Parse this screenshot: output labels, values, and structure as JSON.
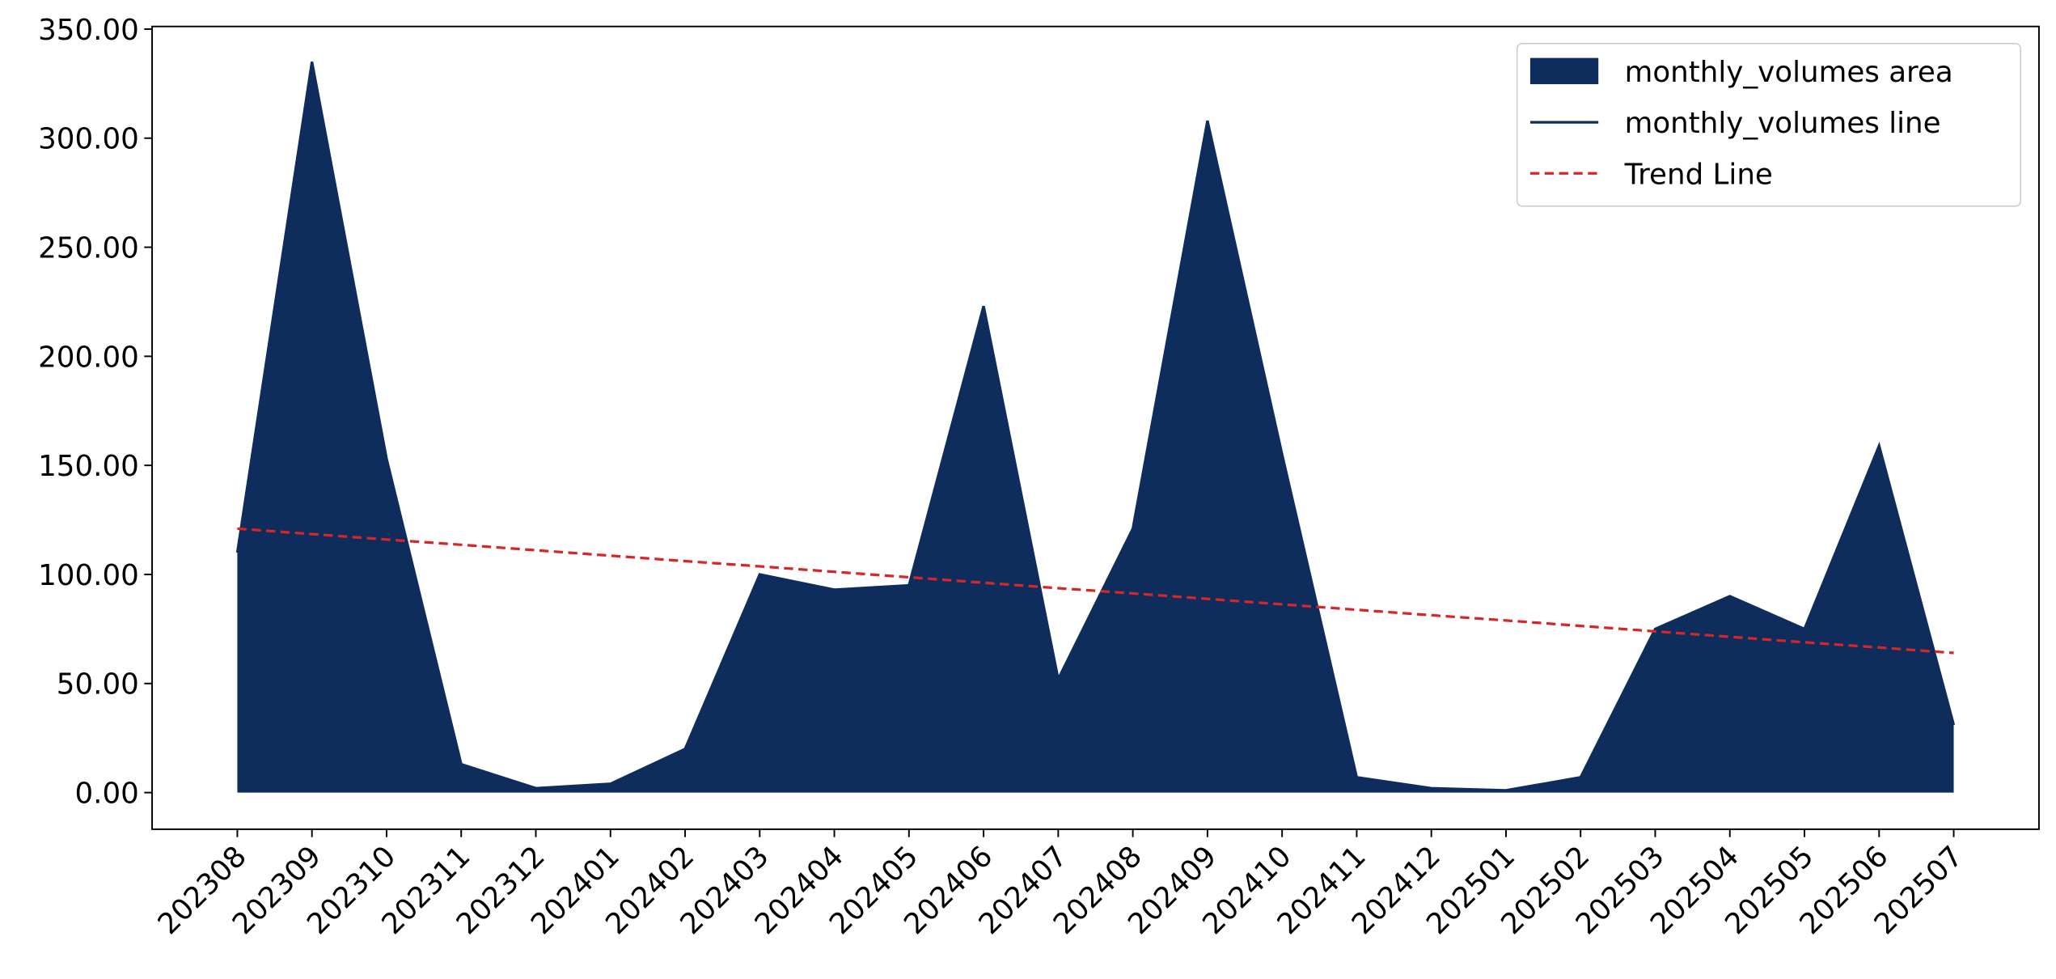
{
  "chart_data": {
    "type": "area",
    "categories": [
      "202308",
      "202309",
      "202310",
      "202311",
      "202312",
      "202401",
      "202402",
      "202403",
      "202404",
      "202405",
      "202406",
      "202407",
      "202408",
      "202409",
      "202410",
      "202411",
      "202412",
      "202501",
      "202502",
      "202503",
      "202504",
      "202505",
      "202506",
      "202507"
    ],
    "series": [
      {
        "name": "monthly_volumes area",
        "type": "area",
        "color": "#0e2d5c",
        "values": [
          110,
          335,
          153,
          13,
          2,
          4,
          20,
          100,
          93,
          95,
          223,
          52,
          121,
          308,
          155,
          7,
          2,
          1,
          7,
          75,
          90,
          75,
          159,
          31
        ]
      },
      {
        "name": "monthly_volumes line",
        "type": "line",
        "color": "#0e2d5c",
        "values": [
          110,
          335,
          153,
          13,
          2,
          4,
          20,
          100,
          93,
          95,
          223,
          52,
          121,
          308,
          155,
          7,
          2,
          1,
          7,
          75,
          90,
          75,
          159,
          31
        ]
      },
      {
        "name": "Trend Line",
        "type": "line",
        "dashed": true,
        "color": "#d62728",
        "values": [
          121,
          118.5,
          116,
          113.6,
          111.1,
          108.6,
          106.1,
          103.7,
          101.2,
          98.7,
          96.2,
          93.7,
          91.3,
          88.8,
          86.3,
          83.8,
          81.3,
          78.9,
          76.4,
          73.9,
          71.4,
          68.9,
          66.5,
          64
        ]
      }
    ],
    "ylim": [
      -16.8,
      351.2
    ],
    "yticks": [
      {
        "value": 0,
        "label": "0.00"
      },
      {
        "value": 50,
        "label": "50.00"
      },
      {
        "value": 100,
        "label": "100.00"
      },
      {
        "value": 150,
        "label": "150.00"
      },
      {
        "value": 200,
        "label": "200.00"
      },
      {
        "value": 250,
        "label": "250.00"
      },
      {
        "value": 300,
        "label": "300.00"
      },
      {
        "value": 350,
        "label": "350.00"
      }
    ],
    "legend": "upper right"
  }
}
